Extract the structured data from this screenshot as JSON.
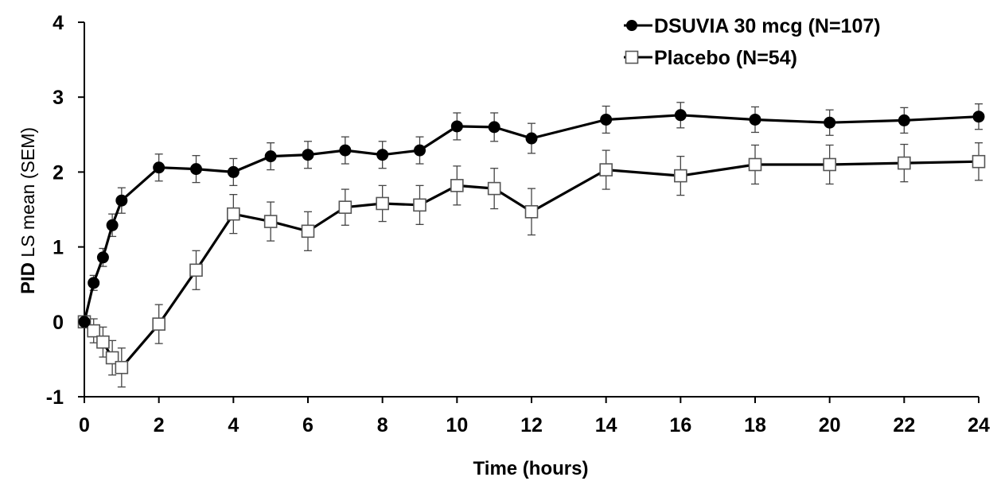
{
  "chart_data": {
    "type": "line",
    "title": "",
    "xlabel": "Time (hours)",
    "ylabel_bold": "PID",
    "ylabel_rest": " LS mean (SEM)",
    "xlim": [
      0,
      24
    ],
    "ylim": [
      -1,
      4
    ],
    "xticks": [
      0,
      2,
      4,
      6,
      8,
      10,
      12,
      14,
      16,
      18,
      20,
      22,
      24
    ],
    "yticks": [
      -1,
      0,
      1,
      2,
      3,
      4
    ],
    "grid": false,
    "legend_position": "top-right",
    "series": [
      {
        "name": "DSUVIA 30 mcg (N=107)",
        "marker": "filled-circle",
        "color": "#000000",
        "x": [
          0,
          0.25,
          0.5,
          0.75,
          1,
          2,
          3,
          4,
          5,
          6,
          7,
          8,
          9,
          10,
          11,
          12,
          14,
          16,
          18,
          20,
          22,
          24
        ],
        "y": [
          0,
          0.52,
          0.86,
          1.29,
          1.62,
          2.06,
          2.04,
          2.0,
          2.21,
          2.23,
          2.29,
          2.23,
          2.29,
          2.61,
          2.6,
          2.45,
          2.7,
          2.76,
          2.7,
          2.66,
          2.69,
          2.74
        ],
        "sem": [
          0,
          0.1,
          0.12,
          0.15,
          0.17,
          0.18,
          0.18,
          0.18,
          0.18,
          0.18,
          0.18,
          0.18,
          0.18,
          0.18,
          0.19,
          0.2,
          0.18,
          0.17,
          0.17,
          0.17,
          0.17,
          0.17
        ]
      },
      {
        "name": "Placebo (N=54)",
        "marker": "open-square",
        "color": "#000000",
        "x": [
          0,
          0.25,
          0.5,
          0.75,
          1,
          2,
          3,
          4,
          5,
          6,
          7,
          8,
          9,
          10,
          11,
          12,
          14,
          16,
          18,
          20,
          22,
          24
        ],
        "y": [
          0,
          -0.12,
          -0.27,
          -0.48,
          -0.61,
          -0.03,
          0.69,
          1.44,
          1.34,
          1.21,
          1.53,
          1.58,
          1.56,
          1.82,
          1.78,
          1.47,
          2.03,
          1.95,
          2.1,
          2.1,
          2.12,
          2.14
        ],
        "sem": [
          0,
          0.16,
          0.2,
          0.23,
          0.26,
          0.26,
          0.26,
          0.26,
          0.26,
          0.26,
          0.24,
          0.24,
          0.26,
          0.26,
          0.27,
          0.31,
          0.26,
          0.26,
          0.26,
          0.26,
          0.25,
          0.25
        ]
      }
    ]
  }
}
